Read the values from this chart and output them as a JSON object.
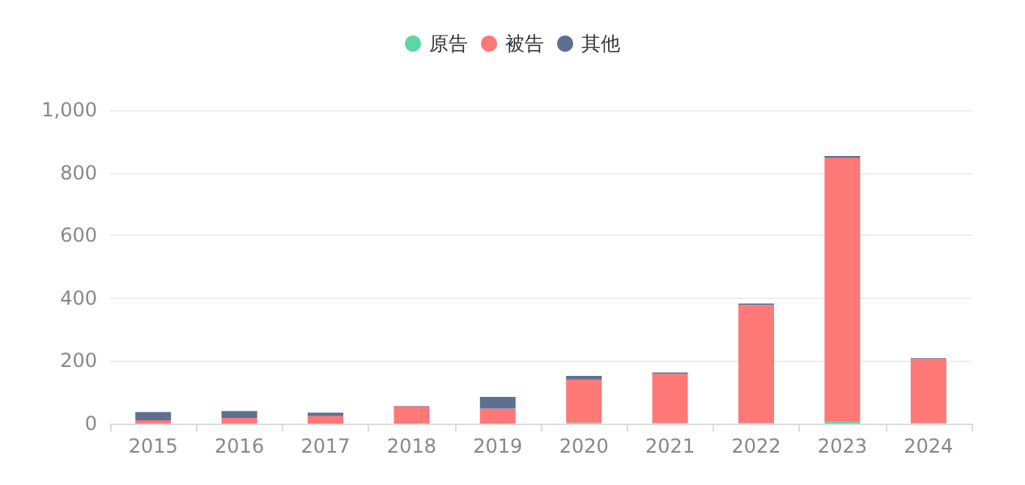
{
  "chart_data": {
    "type": "bar",
    "stacked": true,
    "categories": [
      "2015",
      "2016",
      "2017",
      "2018",
      "2019",
      "2020",
      "2021",
      "2022",
      "2023",
      "2024"
    ],
    "series": [
      {
        "name": "原告",
        "color": "#5ad8a6",
        "values": [
          0,
          0,
          0,
          0,
          0,
          3,
          2,
          2,
          8,
          2
        ]
      },
      {
        "name": "被告",
        "color": "#ff7878",
        "values": [
          10,
          18,
          24,
          55,
          48,
          137,
          158,
          376,
          840,
          205
        ]
      },
      {
        "name": "其他",
        "color": "#5d7092",
        "values": [
          27,
          22,
          11,
          1,
          37,
          12,
          3,
          5,
          5,
          2
        ]
      }
    ],
    "ylim": [
      0,
      1000
    ],
    "yticks": [
      0,
      200,
      400,
      600,
      800,
      {
        "value": 1000,
        "label": "1,000"
      }
    ],
    "grid": "y",
    "legend": "top"
  }
}
